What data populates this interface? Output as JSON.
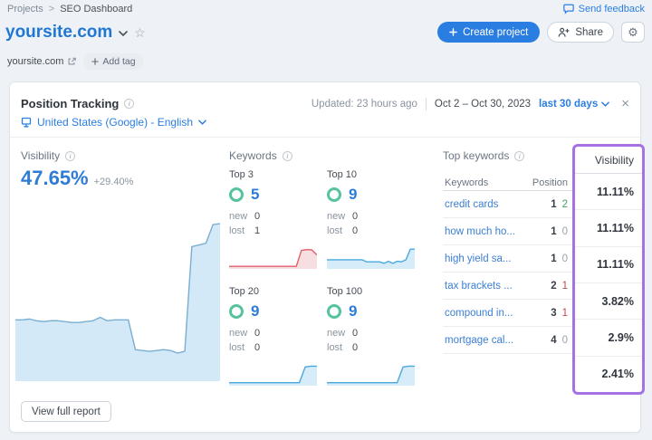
{
  "page": {
    "breadcrumb": [
      "Projects",
      "SEO Dashboard"
    ],
    "breadcrumb_separator": ">",
    "send_feedback": "Send feedback",
    "title": "yoursite.com",
    "domain": "yoursite.com",
    "add_tag": "Add tag",
    "create_project": "Create project",
    "share": "Share"
  },
  "icons": {
    "close": "×",
    "star": "☆",
    "gear": "⚙"
  },
  "panel": {
    "title": "Position Tracking",
    "updated": "Updated: 23 hours ago",
    "date_range": "Oct 2 – Oct 30, 2023",
    "period": "last 30 days",
    "locale": "United States (Google) - English"
  },
  "visibility": {
    "label": "Visibility",
    "value": "47.65%",
    "delta": "+29.40%"
  },
  "keywords": {
    "label": "Keywords",
    "new_label": "new",
    "lost_label": "lost",
    "cards": [
      {
        "label": "Top 3",
        "count": "5",
        "new": "0",
        "lost": "1"
      },
      {
        "label": "Top 10",
        "count": "9",
        "new": "0",
        "lost": "0"
      },
      {
        "label": "Top 20",
        "count": "9",
        "new": "0",
        "lost": "0"
      },
      {
        "label": "Top 100",
        "count": "9",
        "new": "0",
        "lost": "0"
      }
    ]
  },
  "top_keywords": {
    "label": "Top keywords",
    "columns": [
      "Keywords",
      "Position"
    ],
    "rows": [
      {
        "keyword": "credit cards",
        "position": "1",
        "diff": "2",
        "trend": "up"
      },
      {
        "keyword": "how much ho...",
        "position": "1",
        "diff": "0",
        "trend": "zero"
      },
      {
        "keyword": "high yield sa...",
        "position": "1",
        "diff": "0",
        "trend": "zero"
      },
      {
        "keyword": "tax brackets ...",
        "position": "2",
        "diff": "1",
        "trend": "down"
      },
      {
        "keyword": "compound in...",
        "position": "3",
        "diff": "1",
        "trend": "down"
      },
      {
        "keyword": "mortgage cal...",
        "position": "4",
        "diff": "0",
        "trend": "zero"
      }
    ]
  },
  "visibility_column": {
    "header": "Visibility",
    "values": [
      "11.11%",
      "11.11%",
      "11.11%",
      "3.82%",
      "2.9%",
      "2.41%"
    ]
  },
  "footer": {
    "view_full_report": "View full report"
  },
  "colors": {
    "accent_blue": "#2a7de1",
    "highlight_purple": "#a672e3",
    "positive_green": "#3f9e63",
    "negative_red": "#c4454f"
  },
  "chart_data": [
    {
      "type": "area",
      "name": "visibility-trend",
      "x_range": "Oct 2 – Oct 30, 2023",
      "ylim": [
        0,
        100
      ],
      "values": [
        36,
        36,
        36.5,
        35.5,
        35,
        35.5,
        35.5,
        35,
        34.5,
        34.5,
        35,
        35.5,
        37.5,
        35.5,
        36,
        36,
        36,
        18.5,
        18,
        17.5,
        18,
        18.5,
        18,
        16.5,
        17.5,
        79,
        80,
        81,
        92,
        92.5
      ],
      "line_color": "#79aed3",
      "fill_color": "#d4e9f7"
    },
    {
      "type": "area",
      "name": "top3-trend",
      "ylim": [
        0,
        100
      ],
      "values": [
        10,
        10,
        10,
        10,
        10,
        10,
        10,
        10,
        10,
        10,
        10,
        10,
        10,
        10,
        73,
        76,
        75,
        55
      ],
      "line_color": "#e0606b",
      "fill_color": "#f7dee0"
    },
    {
      "type": "area",
      "name": "top10-trend",
      "ylim": [
        0,
        100
      ],
      "values": [
        36,
        36,
        36,
        36,
        36,
        36,
        36,
        36,
        36,
        28,
        28,
        28,
        28,
        22,
        30,
        22,
        30,
        28,
        36,
        78,
        78
      ],
      "line_color": "#49a8de",
      "fill_color": "#d7ecf9"
    },
    {
      "type": "area",
      "name": "top20-trend",
      "ylim": [
        0,
        100
      ],
      "values": [
        12,
        12,
        12,
        12,
        12,
        12,
        12,
        12,
        12,
        12,
        12,
        12,
        12,
        74,
        77,
        77
      ],
      "line_color": "#49a8de",
      "fill_color": "#d7ecf9"
    },
    {
      "type": "area",
      "name": "top100-trend",
      "ylim": [
        0,
        100
      ],
      "values": [
        12,
        12,
        12,
        12,
        12,
        12,
        12,
        12,
        12,
        12,
        12,
        12,
        12,
        74,
        77,
        77
      ],
      "line_color": "#49a8de",
      "fill_color": "#d7ecf9"
    }
  ]
}
